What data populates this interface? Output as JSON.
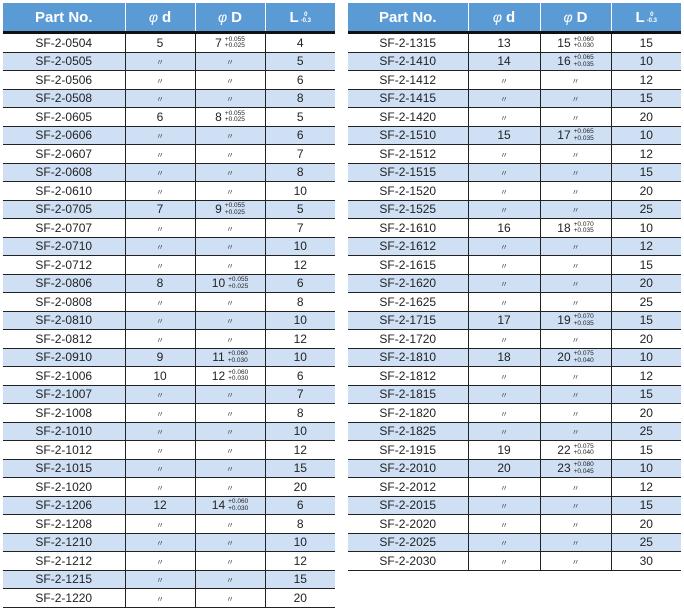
{
  "colors": {
    "header": "#5b9bd5",
    "alt_row": "#cfe0f5",
    "header_rule": "#111111"
  },
  "headers": {
    "part": "Part No.",
    "phi": "φ",
    "d": "d",
    "D": "D",
    "L": "L",
    "L_upper": "0",
    "L_lower": "-0.3"
  },
  "ditto": "〃",
  "tables": [
    {
      "rows": [
        [
          "SF-2-0504",
          "5",
          "7",
          "+0.055",
          "+0.025",
          "4"
        ],
        [
          "SF-2-0505",
          "〃",
          "〃",
          "",
          "",
          "5"
        ],
        [
          "SF-2-0506",
          "〃",
          "〃",
          "",
          "",
          "6"
        ],
        [
          "SF-2-0508",
          "〃",
          "〃",
          "",
          "",
          "8"
        ],
        [
          "SF-2-0605",
          "6",
          "8",
          "+0.055",
          "+0.025",
          "5"
        ],
        [
          "SF-2-0606",
          "〃",
          "〃",
          "",
          "",
          "6"
        ],
        [
          "SF-2-0607",
          "〃",
          "〃",
          "",
          "",
          "7"
        ],
        [
          "SF-2-0608",
          "〃",
          "〃",
          "",
          "",
          "8"
        ],
        [
          "SF-2-0610",
          "〃",
          "〃",
          "",
          "",
          "10"
        ],
        [
          "SF-2-0705",
          "7",
          "9",
          "+0.055",
          "+0.025",
          "5"
        ],
        [
          "SF-2-0707",
          "〃",
          "〃",
          "",
          "",
          "7"
        ],
        [
          "SF-2-0710",
          "〃",
          "〃",
          "",
          "",
          "10"
        ],
        [
          "SF-2-0712",
          "〃",
          "〃",
          "",
          "",
          "12"
        ],
        [
          "SF-2-0806",
          "8",
          "10",
          "+0.055",
          "+0.025",
          "6"
        ],
        [
          "SF-2-0808",
          "〃",
          "〃",
          "",
          "",
          "8"
        ],
        [
          "SF-2-0810",
          "〃",
          "〃",
          "",
          "",
          "10"
        ],
        [
          "SF-2-0812",
          "〃",
          "〃",
          "",
          "",
          "12"
        ],
        [
          "SF-2-0910",
          "9",
          "11",
          "+0.060",
          "+0.030",
          "10"
        ],
        [
          "SF-2-1006",
          "10",
          "12",
          "+0.060",
          "+0.030",
          "6"
        ],
        [
          "SF-2-1007",
          "〃",
          "〃",
          "",
          "",
          "7"
        ],
        [
          "SF-2-1008",
          "〃",
          "〃",
          "",
          "",
          "8"
        ],
        [
          "SF-2-1010",
          "〃",
          "〃",
          "",
          "",
          "10"
        ],
        [
          "SF-2-1012",
          "〃",
          "〃",
          "",
          "",
          "12"
        ],
        [
          "SF-2-1015",
          "〃",
          "〃",
          "",
          "",
          "15"
        ],
        [
          "SF-2-1020",
          "〃",
          "〃",
          "",
          "",
          "20"
        ],
        [
          "SF-2-1206",
          "12",
          "14",
          "+0.060",
          "+0.030",
          "6"
        ],
        [
          "SF-2-1208",
          "〃",
          "〃",
          "",
          "",
          "8"
        ],
        [
          "SF-2-1210",
          "〃",
          "〃",
          "",
          "",
          "10"
        ],
        [
          "SF-2-1212",
          "〃",
          "〃",
          "",
          "",
          "12"
        ],
        [
          "SF-2-1215",
          "〃",
          "〃",
          "",
          "",
          "15"
        ],
        [
          "SF-2-1220",
          "〃",
          "〃",
          "",
          "",
          "20"
        ]
      ]
    },
    {
      "rows": [
        [
          "SF-2-1315",
          "13",
          "15",
          "+0.060",
          "+0.030",
          "15"
        ],
        [
          "SF-2-1410",
          "14",
          "16",
          "+0.065",
          "+0.035",
          "10"
        ],
        [
          "SF-2-1412",
          "〃",
          "〃",
          "",
          "",
          "12"
        ],
        [
          "SF-2-1415",
          "〃",
          "〃",
          "",
          "",
          "15"
        ],
        [
          "SF-2-1420",
          "〃",
          "〃",
          "",
          "",
          "20"
        ],
        [
          "SF-2-1510",
          "15",
          "17",
          "+0.065",
          "+0.035",
          "10"
        ],
        [
          "SF-2-1512",
          "〃",
          "〃",
          "",
          "",
          "12"
        ],
        [
          "SF-2-1515",
          "〃",
          "〃",
          "",
          "",
          "15"
        ],
        [
          "SF-2-1520",
          "〃",
          "〃",
          "",
          "",
          "20"
        ],
        [
          "SF-2-1525",
          "〃",
          "〃",
          "",
          "",
          "25"
        ],
        [
          "SF-2-1610",
          "16",
          "18",
          "+0.070",
          "+0.035",
          "10"
        ],
        [
          "SF-2-1612",
          "〃",
          "〃",
          "",
          "",
          "12"
        ],
        [
          "SF-2-1615",
          "〃",
          "〃",
          "",
          "",
          "15"
        ],
        [
          "SF-2-1620",
          "〃",
          "〃",
          "",
          "",
          "20"
        ],
        [
          "SF-2-1625",
          "〃",
          "〃",
          "",
          "",
          "25"
        ],
        [
          "SF-2-1715",
          "17",
          "19",
          "+0.070",
          "+0.035",
          "15"
        ],
        [
          "SF-2-1720",
          "〃",
          "〃",
          "",
          "",
          "20"
        ],
        [
          "SF-2-1810",
          "18",
          "20",
          "+0.075",
          "+0.040",
          "10"
        ],
        [
          "SF-2-1812",
          "〃",
          "〃",
          "",
          "",
          "12"
        ],
        [
          "SF-2-1815",
          "〃",
          "〃",
          "",
          "",
          "15"
        ],
        [
          "SF-2-1820",
          "〃",
          "〃",
          "",
          "",
          "20"
        ],
        [
          "SF-2-1825",
          "〃",
          "〃",
          "",
          "",
          "25"
        ],
        [
          "SF-2-1915",
          "19",
          "22",
          "+0.075",
          "+0.040",
          "15"
        ],
        [
          "SF-2-2010",
          "20",
          "23",
          "+0.080",
          "+0.045",
          "10"
        ],
        [
          "SF-2-2012",
          "〃",
          "〃",
          "",
          "",
          "12"
        ],
        [
          "SF-2-2015",
          "〃",
          "〃",
          "",
          "",
          "15"
        ],
        [
          "SF-2-2020",
          "〃",
          "〃",
          "",
          "",
          "20"
        ],
        [
          "SF-2-2025",
          "〃",
          "〃",
          "",
          "",
          "25"
        ],
        [
          "SF-2-2030",
          "〃",
          "〃",
          "",
          "",
          "30"
        ]
      ]
    }
  ]
}
